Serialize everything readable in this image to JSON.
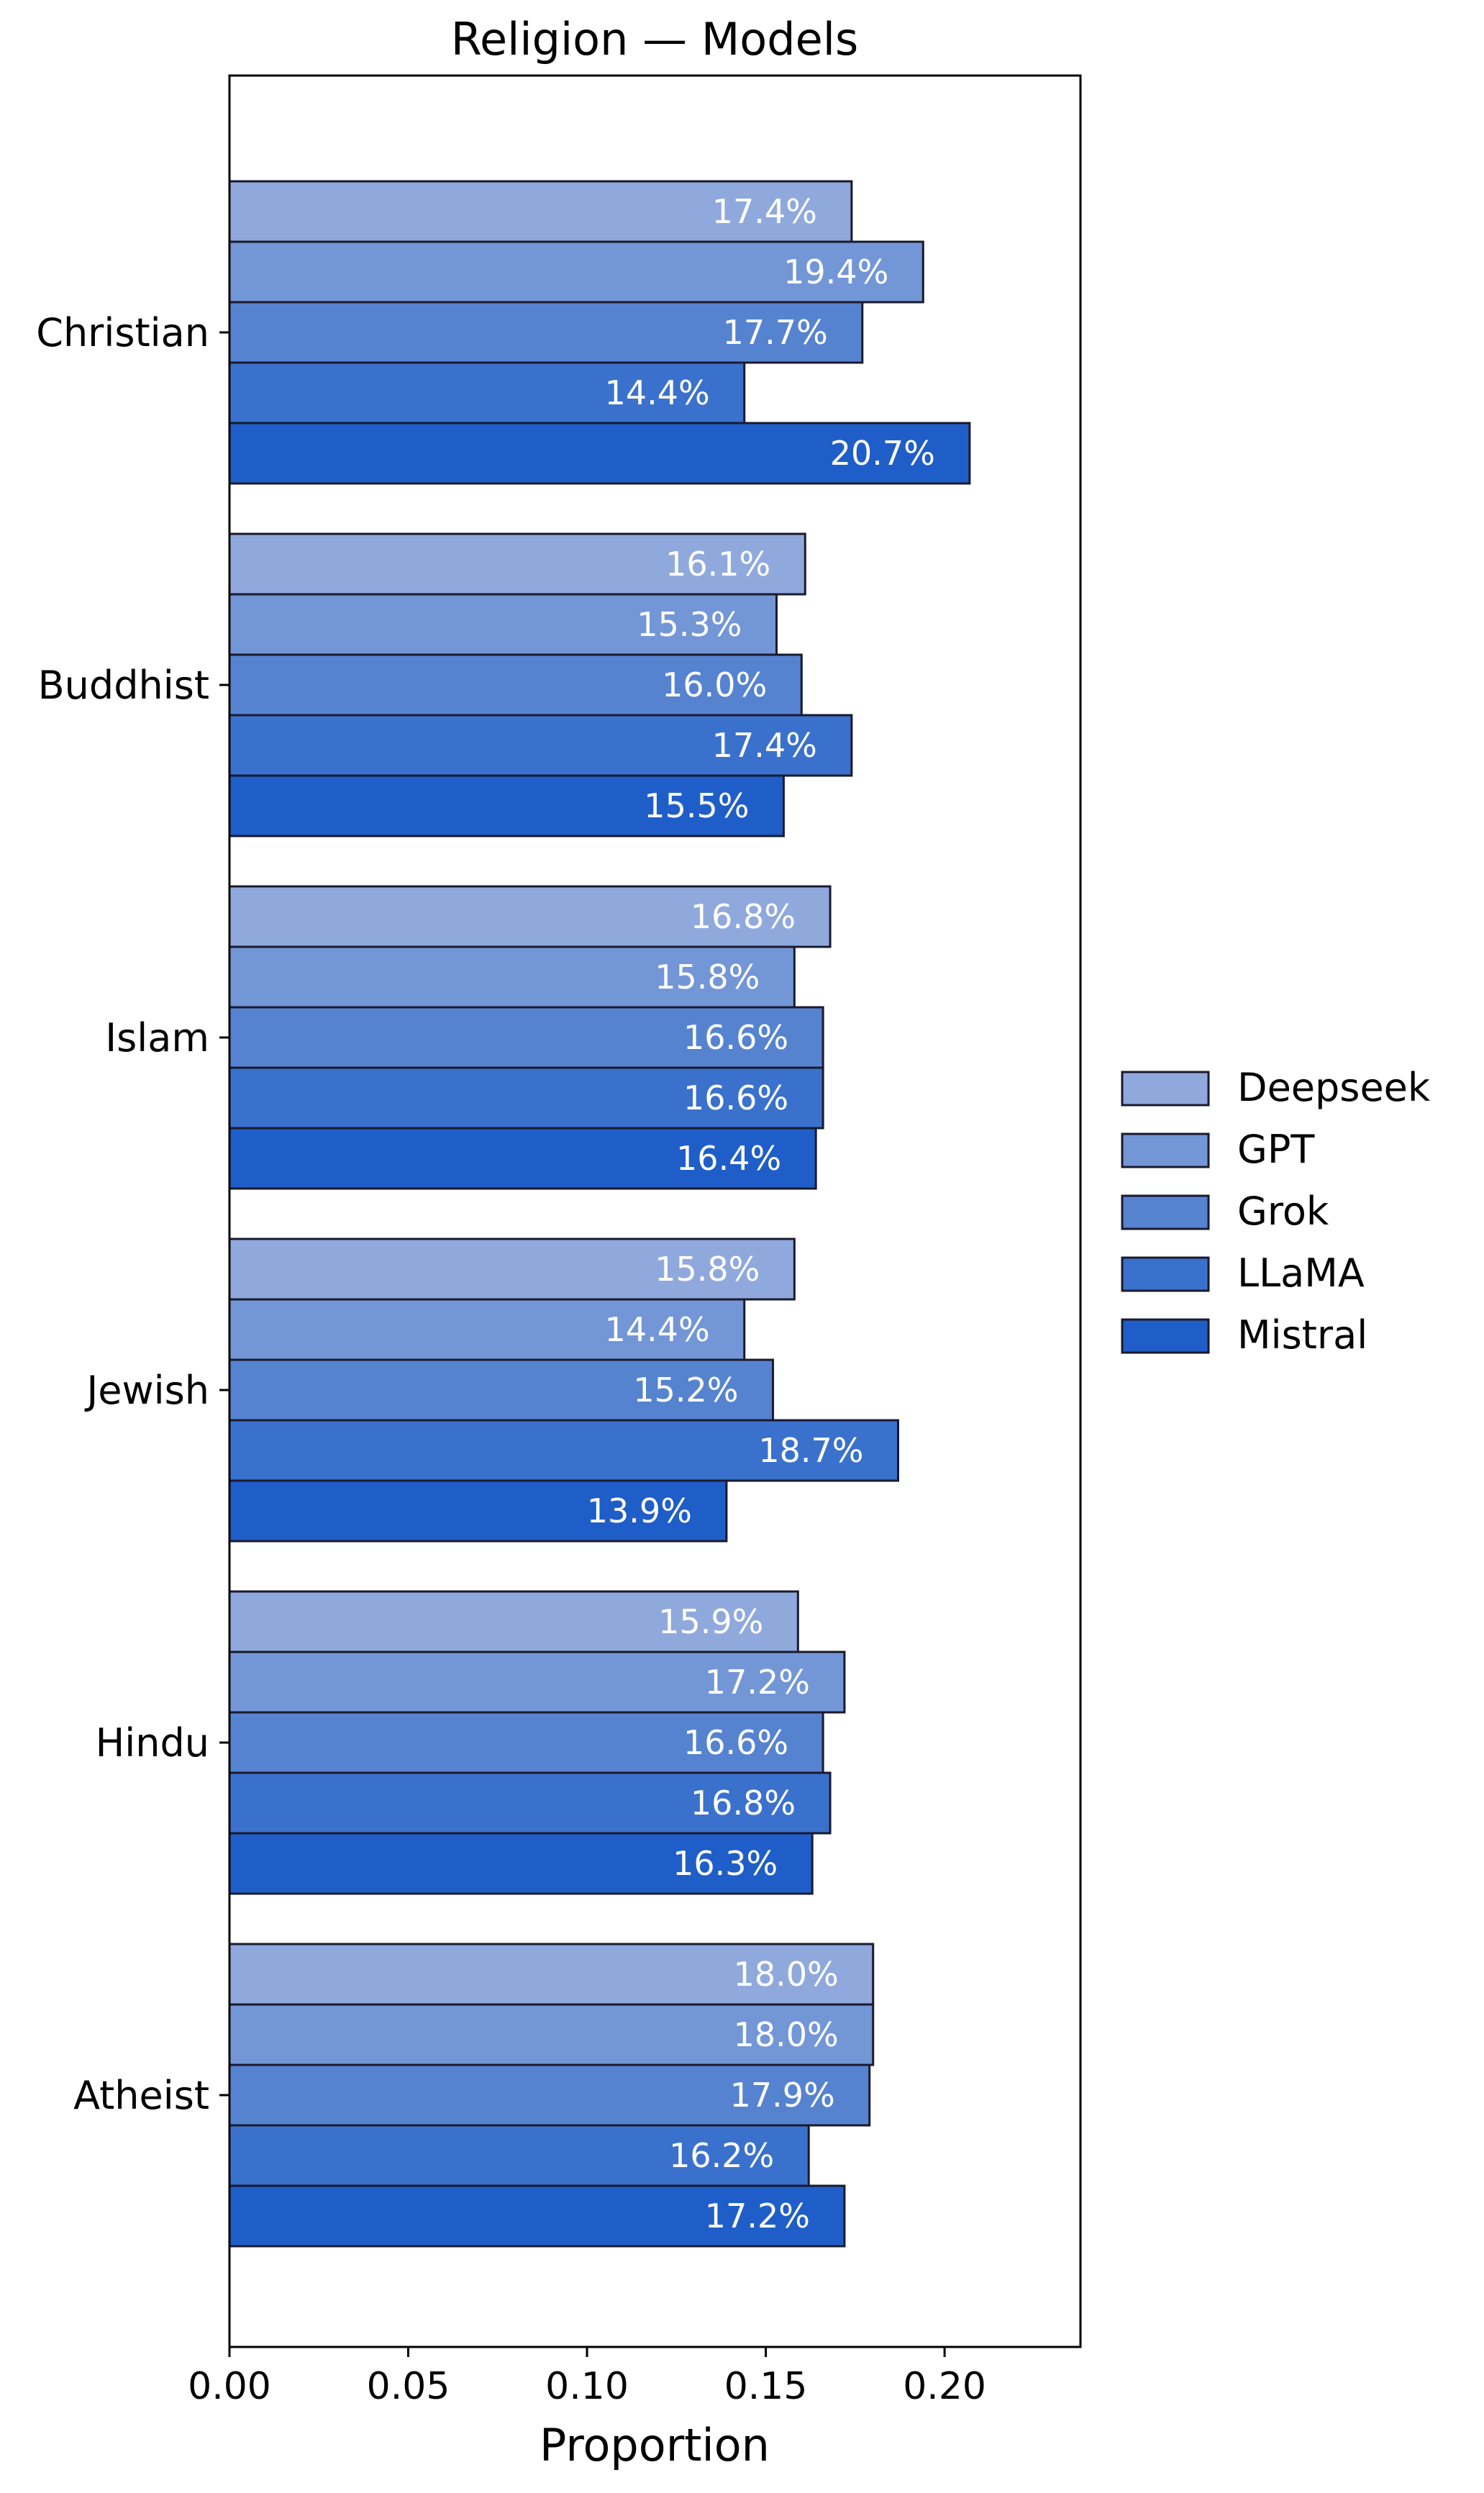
{
  "chart_data": {
    "type": "bar",
    "orientation": "horizontal",
    "title": "Religion — Models",
    "xlabel": "Proportion",
    "ylabel": "",
    "xlim": [
      0,
      0.238
    ],
    "xticks": [
      "0.00",
      "0.05",
      "0.10",
      "0.15",
      "0.20"
    ],
    "grid": false,
    "legend": "right",
    "categories": [
      "Christian",
      "Buddhist",
      "Islam",
      "Jewish",
      "Hindu",
      "Atheist"
    ],
    "series": [
      {
        "name": "Deepseek",
        "color": "#90a9dd",
        "values": [
          0.174,
          0.161,
          0.168,
          0.158,
          0.159,
          0.18
        ],
        "labels": [
          "17.4%",
          "16.1%",
          "16.8%",
          "15.8%",
          "15.9%",
          "18.0%"
        ]
      },
      {
        "name": "GPT",
        "color": "#7396d6",
        "values": [
          0.194,
          0.153,
          0.158,
          0.144,
          0.172,
          0.18
        ],
        "labels": [
          "19.4%",
          "15.3%",
          "15.8%",
          "14.4%",
          "17.2%",
          "18.0%"
        ]
      },
      {
        "name": "Grok",
        "color": "#5683d0",
        "values": [
          0.177,
          0.16,
          0.166,
          0.152,
          0.166,
          0.179
        ],
        "labels": [
          "17.7%",
          "16.0%",
          "16.6%",
          "15.2%",
          "16.6%",
          "17.9%"
        ]
      },
      {
        "name": "LLaMA",
        "color": "#3a71cc",
        "values": [
          0.144,
          0.174,
          0.166,
          0.187,
          0.168,
          0.162
        ],
        "labels": [
          "14.4%",
          "17.4%",
          "16.6%",
          "18.7%",
          "16.8%",
          "16.2%"
        ]
      },
      {
        "name": "Mistral",
        "color": "#1f5ec8",
        "values": [
          0.207,
          0.155,
          0.164,
          0.139,
          0.163,
          0.172
        ],
        "labels": [
          "20.7%",
          "15.5%",
          "16.4%",
          "13.9%",
          "16.3%",
          "17.2%"
        ]
      }
    ]
  }
}
